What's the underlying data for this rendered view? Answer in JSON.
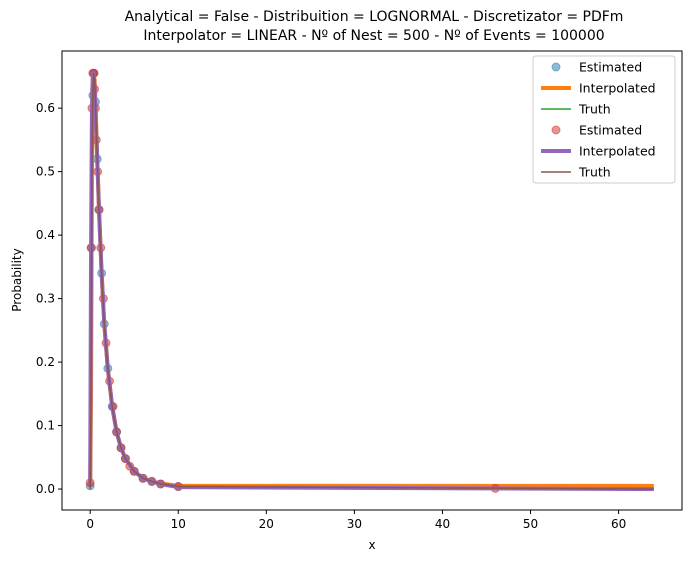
{
  "chart_data": {
    "type": "line",
    "title_lines": [
      "Analytical = False - Distribuition = LOGNORMAL - Discretizator = PDFm",
      "Interpolator = LINEAR - Nº of Nest = 500 - Nº of Events = 100000"
    ],
    "xlabel": "x",
    "ylabel": "Probability",
    "xlim": [
      -3.2,
      67.2
    ],
    "ylim": [
      -0.033,
      0.69
    ],
    "xticks": [
      0,
      10,
      20,
      30,
      40,
      50,
      60
    ],
    "yticks": [
      0.0,
      0.1,
      0.2,
      0.3,
      0.4,
      0.5,
      0.6
    ],
    "grid": false,
    "legend_position": "top-right",
    "series": [
      {
        "name": "Estimated",
        "kind": "points",
        "color": "#1f77b4",
        "x": [
          0.0,
          0.15,
          0.3,
          0.45,
          0.6,
          0.8,
          1.0,
          1.3,
          1.6,
          2.0,
          2.5,
          3.0,
          3.5,
          4.0,
          5.0,
          6.0,
          7.0,
          8.0,
          10.0
        ],
        "y": [
          0.005,
          0.38,
          0.62,
          0.655,
          0.61,
          0.52,
          0.44,
          0.34,
          0.26,
          0.19,
          0.13,
          0.09,
          0.065,
          0.048,
          0.028,
          0.017,
          0.012,
          0.008,
          0.004
        ]
      },
      {
        "name": "Interpolated",
        "kind": "line",
        "color": "#ff7f0e",
        "width": 4,
        "x": [
          0.0,
          0.1,
          0.2,
          0.3,
          0.4,
          0.5,
          0.6,
          0.8,
          1.0,
          1.3,
          1.6,
          2.0,
          2.5,
          3.0,
          3.5,
          4.0,
          5.0,
          6.0,
          7.0,
          8.0,
          10.0,
          64.0
        ],
        "y": [
          0.005,
          0.15,
          0.5,
          0.62,
          0.655,
          0.645,
          0.61,
          0.52,
          0.44,
          0.34,
          0.26,
          0.19,
          0.13,
          0.09,
          0.065,
          0.048,
          0.028,
          0.017,
          0.012,
          0.009,
          0.005,
          0.005
        ]
      },
      {
        "name": "Truth",
        "kind": "line",
        "color": "#2ca02c",
        "width": 1.5,
        "x": [
          0.0,
          0.1,
          0.2,
          0.3,
          0.4,
          0.5,
          0.6,
          0.8,
          1.0,
          1.3,
          1.6,
          2.0,
          2.5,
          3.0,
          3.5,
          4.0,
          5.0,
          6.0,
          7.0,
          8.0,
          10.0,
          64.0
        ],
        "y": [
          0.0,
          0.15,
          0.5,
          0.62,
          0.655,
          0.645,
          0.61,
          0.52,
          0.44,
          0.34,
          0.26,
          0.19,
          0.13,
          0.09,
          0.065,
          0.048,
          0.028,
          0.017,
          0.012,
          0.008,
          0.004,
          0.0
        ]
      },
      {
        "name": "Estimated",
        "kind": "points",
        "color": "#d62728",
        "x": [
          0.0,
          0.1,
          0.2,
          0.3,
          0.4,
          0.5,
          0.6,
          0.7,
          0.85,
          1.0,
          1.2,
          1.5,
          1.8,
          2.2,
          2.6,
          3.0,
          3.5,
          4.0,
          4.5,
          5.0,
          6.0,
          7.0,
          8.0,
          10.0,
          46.0
        ],
        "y": [
          0.01,
          0.38,
          0.6,
          0.655,
          0.655,
          0.63,
          0.6,
          0.55,
          0.5,
          0.44,
          0.38,
          0.3,
          0.23,
          0.17,
          0.13,
          0.09,
          0.065,
          0.048,
          0.036,
          0.028,
          0.017,
          0.012,
          0.008,
          0.004,
          0.001
        ]
      },
      {
        "name": "Interpolated",
        "kind": "line",
        "color": "#9467bd",
        "width": 4,
        "x": [
          0.0,
          0.1,
          0.2,
          0.3,
          0.4,
          0.5,
          0.6,
          0.8,
          1.0,
          1.3,
          1.6,
          2.0,
          2.5,
          3.0,
          3.5,
          4.0,
          5.0,
          6.0,
          7.0,
          8.0,
          10.0,
          64.0
        ],
        "y": [
          0.01,
          0.38,
          0.6,
          0.655,
          0.655,
          0.63,
          0.6,
          0.52,
          0.44,
          0.34,
          0.26,
          0.19,
          0.13,
          0.09,
          0.065,
          0.048,
          0.028,
          0.017,
          0.012,
          0.008,
          0.003,
          0.0
        ]
      },
      {
        "name": "Truth",
        "kind": "line",
        "color": "#8c564b",
        "width": 1.5,
        "x": [
          0.0,
          0.1,
          0.2,
          0.3,
          0.4,
          0.5,
          0.6,
          0.8,
          1.0,
          1.3,
          1.6,
          2.0,
          2.5,
          3.0,
          3.5,
          4.0,
          5.0,
          6.0,
          7.0,
          8.0,
          10.0,
          64.0
        ],
        "y": [
          0.0,
          0.15,
          0.5,
          0.62,
          0.655,
          0.645,
          0.61,
          0.52,
          0.44,
          0.34,
          0.26,
          0.19,
          0.13,
          0.09,
          0.065,
          0.048,
          0.028,
          0.017,
          0.012,
          0.008,
          0.004,
          0.0
        ]
      }
    ]
  }
}
